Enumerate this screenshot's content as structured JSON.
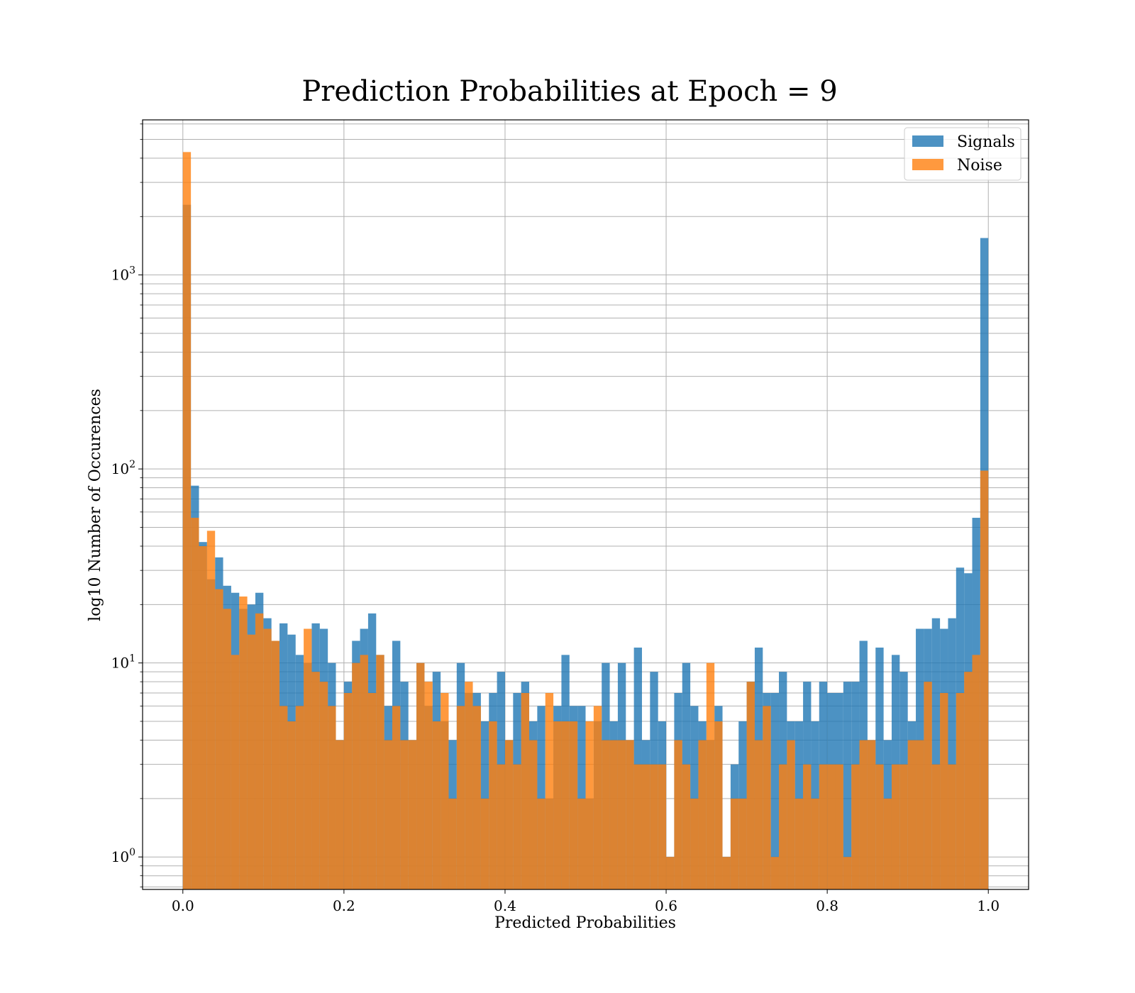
{
  "chart_data": {
    "type": "histogram",
    "title": "Prediction Probabilities at Epoch = 9",
    "xlabel": "Predicted Probabilities",
    "ylabel": "log10 Number of Occurences",
    "yscale": "log",
    "xlim": [
      -0.05,
      1.05
    ],
    "ylim": [
      0.68,
      6300
    ],
    "x_ticks": [
      0.0,
      0.2,
      0.4,
      0.6,
      0.8,
      1.0
    ],
    "x_tick_labels": [
      "0.0",
      "0.2",
      "0.4",
      "0.6",
      "0.8",
      "1.0"
    ],
    "y_ticks": [
      1,
      10,
      100,
      1000
    ],
    "y_tick_labels": [
      {
        "base": "10",
        "exp": "0"
      },
      {
        "base": "10",
        "exp": "1"
      },
      {
        "base": "10",
        "exp": "2"
      },
      {
        "base": "10",
        "exp": "3"
      }
    ],
    "grid": true,
    "legend_position": "top-right",
    "bins": {
      "start": 0.0,
      "end": 1.0,
      "count": 100
    },
    "series": [
      {
        "name": "Signals",
        "color": "#1f77b4",
        "values": [
          2300,
          82,
          42,
          27,
          35,
          25,
          23,
          19,
          20,
          23,
          17,
          13,
          16,
          14,
          11,
          10,
          16,
          15,
          10,
          4,
          8,
          13,
          15,
          18,
          11,
          6,
          13,
          8,
          4,
          10,
          6,
          9,
          5,
          4,
          10,
          7,
          7,
          5,
          7,
          9,
          4,
          7,
          8,
          5,
          6,
          2,
          6,
          11,
          6,
          6,
          2,
          5,
          10,
          5,
          10,
          4,
          12,
          4,
          9,
          5,
          1,
          7,
          10,
          6,
          5,
          4,
          6,
          1,
          3,
          5,
          8,
          12,
          7,
          7,
          9,
          5,
          5,
          8,
          5,
          8,
          7,
          7,
          8,
          8,
          13,
          4,
          12,
          4,
          11,
          9,
          5,
          15,
          15,
          17,
          15,
          17,
          31,
          29,
          56,
          1550
        ]
      },
      {
        "name": "Noise",
        "color": "#ff7f0e",
        "values": [
          4300,
          56,
          40,
          48,
          24,
          19,
          11,
          22,
          14,
          18,
          15,
          13,
          6,
          5,
          6,
          15,
          9,
          8,
          6,
          4,
          7,
          10,
          11,
          7,
          11,
          4,
          6,
          4,
          4,
          10,
          8,
          5,
          7,
          2,
          6,
          8,
          6,
          2,
          5,
          3,
          4,
          3,
          7,
          4,
          2,
          7,
          5,
          5,
          5,
          2,
          5,
          6,
          4,
          4,
          4,
          4,
          3,
          3,
          3,
          3,
          1,
          4,
          3,
          2,
          4,
          10,
          5,
          1,
          2,
          2,
          8,
          4,
          6,
          1,
          3,
          4,
          2,
          3,
          2,
          3,
          3,
          3,
          1,
          3,
          4,
          4,
          3,
          2,
          3,
          3,
          4,
          4,
          8,
          3,
          7,
          3,
          7,
          9,
          11,
          98
        ]
      }
    ]
  }
}
